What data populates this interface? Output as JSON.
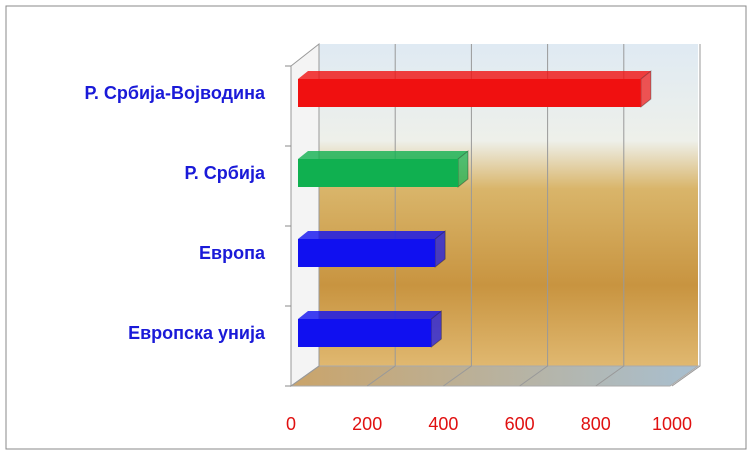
{
  "chart_data": {
    "type": "bar",
    "orientation": "horizontal",
    "categories": [
      "Европска унија",
      "Европа",
      "Р. Србија",
      "Р. Србија-Војводина"
    ],
    "values": [
      350,
      360,
      420,
      900
    ],
    "colors": [
      "#1010f0",
      "#1010f0",
      "#10b050",
      "#f01010"
    ],
    "xlim": [
      0,
      1000
    ],
    "xticks": [
      0,
      200,
      400,
      600,
      800,
      1000
    ],
    "grid": true
  }
}
